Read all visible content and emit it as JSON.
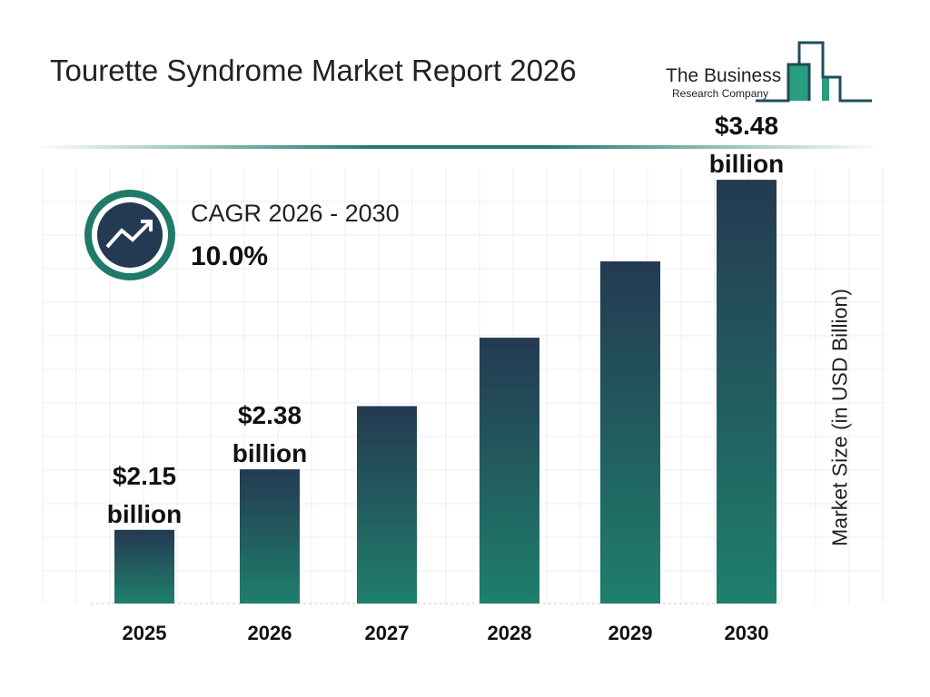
{
  "header": {
    "title": "Tourette Syndrome Market Report 2026",
    "logo_line1": "The Business",
    "logo_line2": "Research Company"
  },
  "cagr": {
    "label": "CAGR 2026 - 2030",
    "value": "10.0%",
    "icon": "trend-up-arrow-icon"
  },
  "colors": {
    "bar_top": "#243a52",
    "bar_bottom": "#1f7f6c",
    "accent": "#1f7a6a"
  },
  "chart_data": {
    "type": "bar",
    "title": "Tourette Syndrome Market Report 2026",
    "categories": [
      "2025",
      "2026",
      "2027",
      "2028",
      "2029",
      "2030"
    ],
    "values": [
      2.15,
      2.38,
      2.62,
      2.88,
      3.17,
      3.48
    ],
    "data_labels": [
      [
        "$2.15",
        "billion"
      ],
      [
        "$2.38",
        "billion"
      ],
      null,
      null,
      null,
      [
        "$3.48",
        "billion"
      ]
    ],
    "xlabel": "",
    "ylabel": "Market Size (in USD Billion)",
    "grid": true
  }
}
